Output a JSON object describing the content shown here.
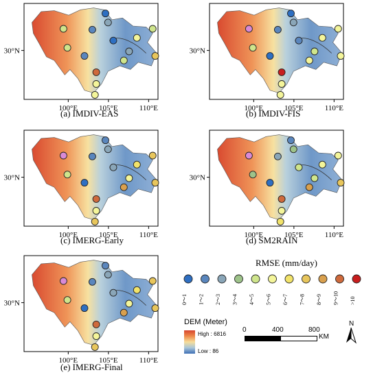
{
  "panels": [
    {
      "caption": "(a) IMDIV-EAS",
      "lat_label": "30°N",
      "x_ticks": [
        "100°E",
        "105°E",
        "110°E"
      ],
      "station_classes": [
        5,
        1,
        2,
        3,
        5,
        2,
        1,
        6,
        3,
        5,
        10,
        5,
        8,
        6,
        6
      ]
    },
    {
      "caption": "(b) IMDIV-FIS",
      "lat_label": "30°N",
      "x_ticks": [
        "100°E",
        "105°E",
        "110°E"
      ],
      "station_classes": [
        4,
        1,
        2,
        3,
        5,
        1,
        2,
        6,
        5,
        6,
        11,
        6,
        6,
        6,
        6
      ]
    },
    {
      "caption": "(c) IMERG-Early",
      "lat_label": "30°N",
      "x_ticks": [
        "100°E",
        "105°E",
        "110°E"
      ],
      "station_classes": [
        4,
        2,
        2,
        3,
        5,
        1,
        3,
        7,
        6,
        9,
        10,
        8,
        8,
        6,
        8
      ]
    },
    {
      "caption": "(d) SM2RAIN",
      "lat_label": "30°N",
      "x_ticks": [
        "100°E",
        "105°E",
        "110°E"
      ],
      "station_classes": [
        4,
        2,
        3,
        4,
        4,
        1,
        5,
        6,
        5,
        9,
        10,
        6,
        8,
        6,
        7
      ]
    },
    {
      "caption": "(e) IMERG-Final",
      "lat_label": "30°N",
      "x_ticks": [
        "100°E",
        "105°E",
        "110°E"
      ],
      "station_classes": [
        4,
        2,
        2,
        3,
        5,
        1,
        3,
        7,
        6,
        9,
        10,
        8,
        8,
        6,
        8
      ]
    }
  ],
  "rmse_legend": {
    "title": "RMSE (mm/day)",
    "classes": [
      {
        "label": "0～1",
        "color": "#2e6fc2"
      },
      {
        "label": "1～2",
        "color": "#5a86bd"
      },
      {
        "label": "2～3",
        "color": "#8aa6b8"
      },
      {
        "label": "3～4",
        "color": "#9ec38a"
      },
      {
        "label": "4～5",
        "color": "#cfe58c"
      },
      {
        "label": "5～6",
        "color": "#f4f59a"
      },
      {
        "label": "6～7",
        "color": "#f2e36a"
      },
      {
        "label": "7～8",
        "color": "#e8c65c"
      },
      {
        "label": "8～9",
        "color": "#d9a04e"
      },
      {
        "label": "9～10",
        "color": "#cf6a3c"
      },
      {
        "label": ">10",
        "color": "#c81e1e"
      }
    ],
    "special_color": "#d98ad6"
  },
  "dem_legend": {
    "title": "DEM (Meter)",
    "high": "High : 6816",
    "low": "Low : 86"
  },
  "scale_bar": {
    "labels": [
      "0",
      "400",
      "800"
    ],
    "unit": "KM"
  },
  "north_arrow": {
    "label": "N"
  }
}
